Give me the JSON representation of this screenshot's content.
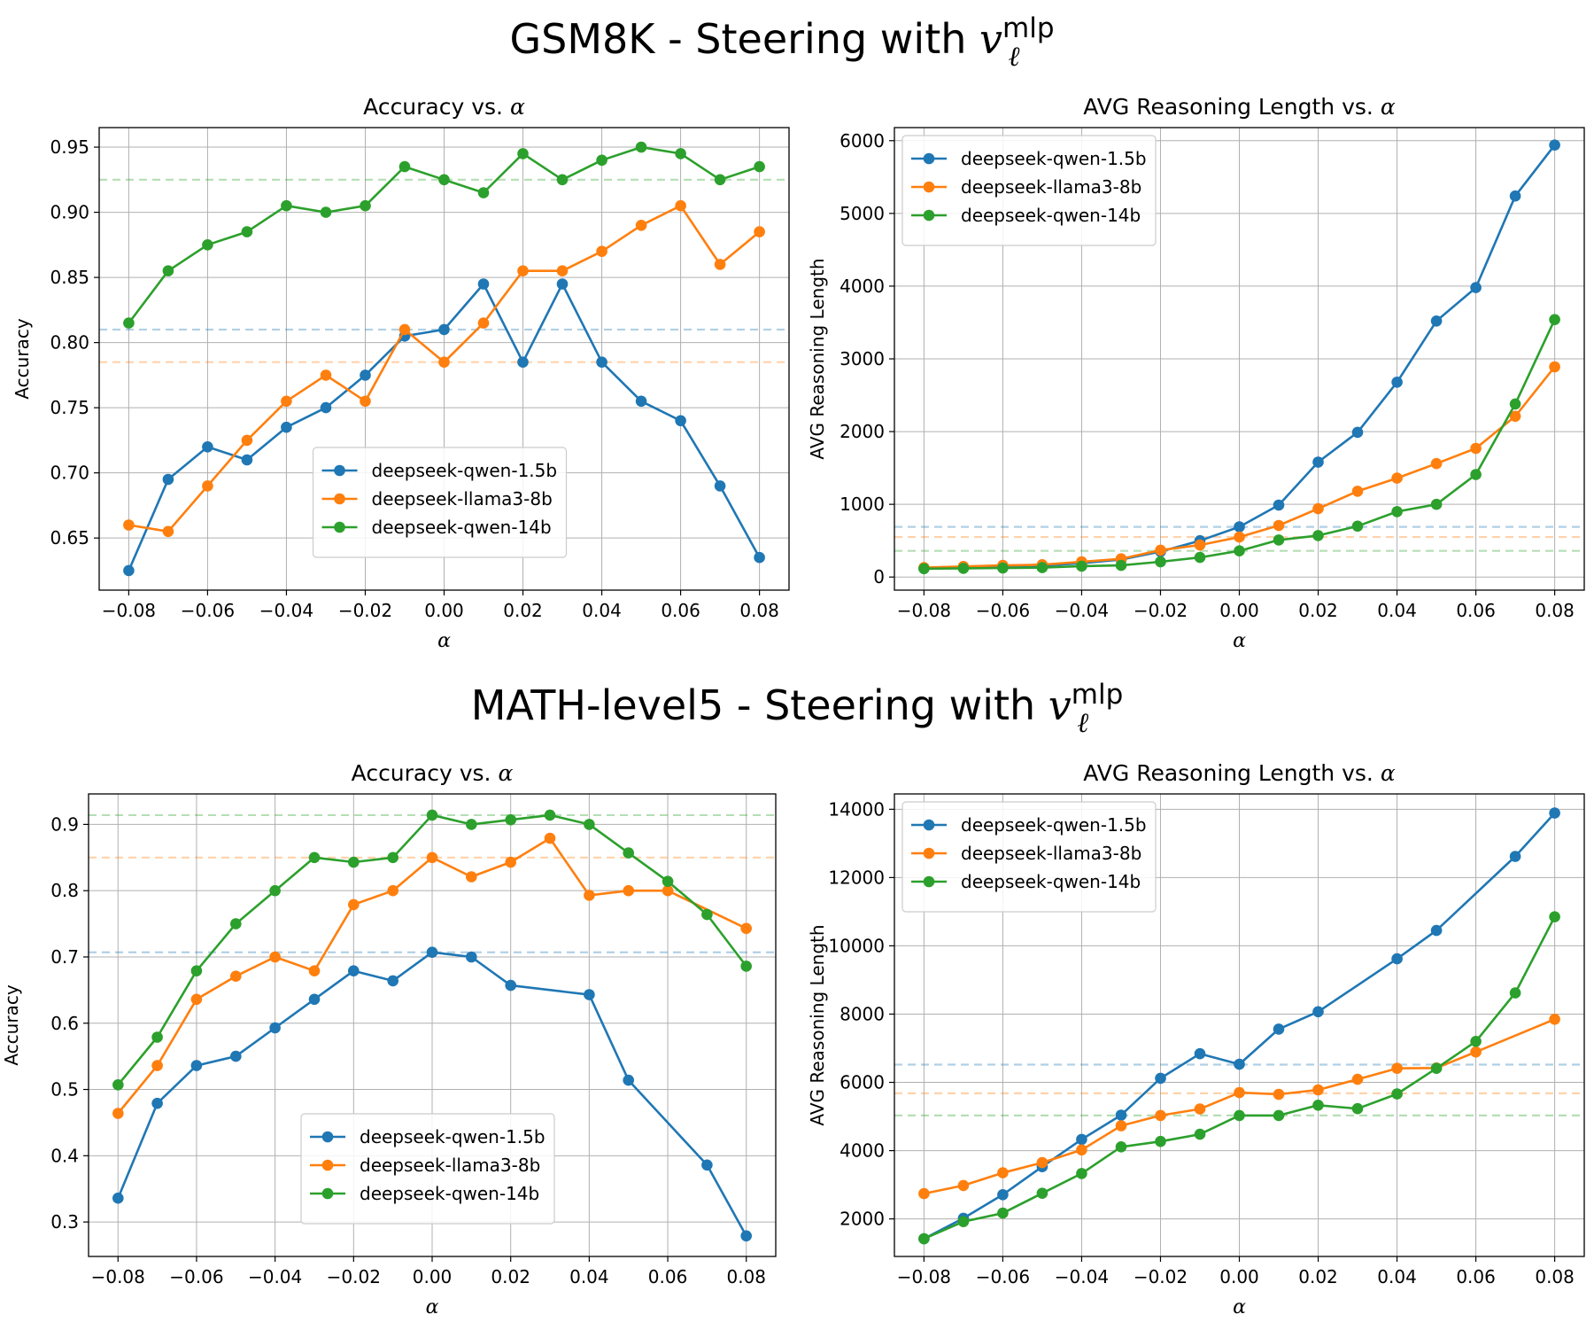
{
  "figure": {
    "suptitles": [
      {
        "text": "GSM8K - Steering with ",
        "var": "v",
        "sup": "mlp",
        "sub": "ℓ"
      },
      {
        "text": "MATH-level5 - Steering with ",
        "var": "v",
        "sup": "mlp",
        "sub": "ℓ"
      }
    ]
  },
  "colors": {
    "qwen15": "#1f77b4",
    "llama8": "#ff7f0e",
    "qwen14": "#2ca02c"
  },
  "chart_data": [
    {
      "type": "line",
      "title": "Accuracy vs. ",
      "title_var": "α",
      "xlabel": "α",
      "ylabel": "Accuracy",
      "x": [
        -0.08,
        -0.07,
        -0.06,
        -0.05,
        -0.04,
        -0.03,
        -0.02,
        -0.01,
        0.0,
        0.01,
        0.02,
        0.03,
        0.04,
        0.05,
        0.06,
        0.07,
        0.08
      ],
      "xlim": [
        -0.0875,
        0.0875
      ],
      "ylim": [
        0.61,
        0.965
      ],
      "xticks": [
        -0.08,
        -0.06,
        -0.04,
        -0.02,
        0.0,
        0.02,
        0.04,
        0.06,
        0.08
      ],
      "xtick_labels": [
        "−0.08",
        "−0.06",
        "−0.04",
        "−0.02",
        "0.00",
        "0.02",
        "0.04",
        "0.06",
        "0.08"
      ],
      "yticks": [
        0.65,
        0.7,
        0.75,
        0.8,
        0.85,
        0.9,
        0.95
      ],
      "ytick_labels": [
        "0.65",
        "0.70",
        "0.75",
        "0.80",
        "0.85",
        "0.90",
        "0.95"
      ],
      "legend_position": "lower-center",
      "grid": true,
      "series": [
        {
          "name": "deepseek-qwen-1.5b",
          "color": "#1f77b4",
          "baseline": 0.81,
          "values": [
            0.625,
            0.695,
            0.72,
            0.71,
            0.735,
            0.75,
            0.775,
            0.805,
            0.81,
            0.845,
            0.785,
            0.845,
            0.785,
            0.755,
            0.74,
            0.69,
            0.635
          ]
        },
        {
          "name": "deepseek-llama3-8b",
          "color": "#ff7f0e",
          "baseline": 0.785,
          "values": [
            0.66,
            0.655,
            0.69,
            0.725,
            0.755,
            0.775,
            0.755,
            0.81,
            0.785,
            0.815,
            0.855,
            0.855,
            0.87,
            0.89,
            0.905,
            0.86,
            0.885
          ]
        },
        {
          "name": "deepseek-qwen-14b",
          "color": "#2ca02c",
          "baseline": 0.925,
          "values": [
            0.815,
            0.855,
            0.875,
            0.885,
            0.905,
            0.9,
            0.905,
            0.935,
            0.925,
            0.915,
            0.945,
            0.925,
            0.94,
            0.95,
            0.945,
            0.925,
            0.935
          ]
        }
      ]
    },
    {
      "type": "line",
      "title": "AVG Reasoning Length vs. ",
      "title_var": "α",
      "xlabel": "α",
      "ylabel": "AVG Reasoning Length",
      "x": [
        -0.08,
        -0.07,
        -0.06,
        -0.05,
        -0.04,
        -0.03,
        -0.02,
        -0.01,
        0.0,
        0.01,
        0.02,
        0.03,
        0.04,
        0.05,
        0.06,
        0.07,
        0.08
      ],
      "xlim": [
        -0.0875,
        0.0875
      ],
      "ylim": [
        -180,
        6180
      ],
      "xticks": [
        -0.08,
        -0.06,
        -0.04,
        -0.02,
        0.0,
        0.02,
        0.04,
        0.06,
        0.08
      ],
      "xtick_labels": [
        "−0.08",
        "−0.06",
        "−0.04",
        "−0.02",
        "0.00",
        "0.02",
        "0.04",
        "0.06",
        "0.08"
      ],
      "yticks": [
        0,
        1000,
        2000,
        3000,
        4000,
        5000,
        6000
      ],
      "ytick_labels": [
        "0",
        "1000",
        "2000",
        "3000",
        "4000",
        "5000",
        "6000"
      ],
      "legend_position": "upper-left",
      "grid": true,
      "series": [
        {
          "name": "deepseek-qwen-1.5b",
          "color": "#1f77b4",
          "baseline": 690,
          "values": [
            120,
            130,
            140,
            155,
            190,
            240,
            350,
            500,
            690,
            990,
            1580,
            1990,
            2680,
            3520,
            3980,
            5240,
            5940
          ]
        },
        {
          "name": "deepseek-llama3-8b",
          "color": "#ff7f0e",
          "baseline": 550,
          "values": [
            130,
            145,
            160,
            170,
            210,
            250,
            370,
            440,
            550,
            710,
            940,
            1180,
            1360,
            1560,
            1770,
            2210,
            2890
          ]
        },
        {
          "name": "deepseek-qwen-14b",
          "color": "#2ca02c",
          "baseline": 360,
          "values": [
            115,
            120,
            125,
            130,
            150,
            160,
            210,
            270,
            360,
            510,
            570,
            700,
            900,
            1000,
            1410,
            2380,
            3540
          ]
        }
      ]
    },
    {
      "type": "line",
      "title": "Accuracy vs. ",
      "title_var": "α",
      "xlabel": "α",
      "ylabel": "Accuracy",
      "x": [
        -0.08,
        -0.07,
        -0.06,
        -0.05,
        -0.04,
        -0.03,
        -0.02,
        -0.01,
        0.0,
        0.01,
        0.02,
        0.03,
        0.04,
        0.05,
        0.06,
        0.07,
        0.08
      ],
      "xlim": [
        -0.0875,
        0.0875
      ],
      "ylim": [
        0.248,
        0.946
      ],
      "xticks": [
        -0.08,
        -0.06,
        -0.04,
        -0.02,
        0.0,
        0.02,
        0.04,
        0.06,
        0.08
      ],
      "xtick_labels": [
        "−0.08",
        "−0.06",
        "−0.04",
        "−0.02",
        "0.00",
        "0.02",
        "0.04",
        "0.06",
        "0.08"
      ],
      "yticks": [
        0.3,
        0.4,
        0.5,
        0.6,
        0.7,
        0.8,
        0.9
      ],
      "ytick_labels": [
        "0.3",
        "0.4",
        "0.5",
        "0.6",
        "0.7",
        "0.8",
        "0.9"
      ],
      "legend_position": "lower-center",
      "grid": true,
      "series": [
        {
          "name": "deepseek-qwen-1.5b",
          "color": "#1f77b4",
          "baseline": 0.707,
          "values": [
            0.336,
            0.479,
            0.536,
            0.55,
            0.593,
            0.636,
            0.679,
            0.664,
            0.707,
            0.7,
            0.657,
            null,
            0.643,
            0.514,
            null,
            0.386,
            0.279
          ]
        },
        {
          "name": "deepseek-llama3-8b",
          "color": "#ff7f0e",
          "baseline": 0.85,
          "values": [
            0.464,
            0.536,
            0.636,
            0.671,
            0.7,
            0.679,
            0.779,
            0.8,
            0.85,
            0.821,
            0.843,
            0.879,
            0.793,
            0.8,
            0.8,
            null,
            0.743
          ]
        },
        {
          "name": "deepseek-qwen-14b",
          "color": "#2ca02c",
          "baseline": 0.914,
          "values": [
            0.507,
            0.579,
            0.679,
            0.75,
            0.8,
            0.85,
            0.843,
            0.85,
            0.914,
            0.9,
            0.907,
            0.914,
            0.9,
            0.857,
            0.814,
            0.764,
            0.686
          ]
        }
      ]
    },
    {
      "type": "line",
      "title": "AVG Reasoning Length vs. ",
      "title_var": "α",
      "xlabel": "α",
      "ylabel": "AVG Reasoning Length",
      "x": [
        -0.08,
        -0.07,
        -0.06,
        -0.05,
        -0.04,
        -0.03,
        -0.02,
        -0.01,
        0.0,
        0.01,
        0.02,
        0.03,
        0.04,
        0.05,
        0.06,
        0.07,
        0.08
      ],
      "xlim": [
        -0.0875,
        0.0875
      ],
      "ylim": [
        900,
        14450
      ],
      "xticks": [
        -0.08,
        -0.06,
        -0.04,
        -0.02,
        0.0,
        0.02,
        0.04,
        0.06,
        0.08
      ],
      "xtick_labels": [
        "−0.08",
        "−0.06",
        "−0.04",
        "−0.02",
        "0.00",
        "0.02",
        "0.04",
        "0.06",
        "0.08"
      ],
      "yticks": [
        2000,
        4000,
        6000,
        8000,
        10000,
        12000,
        14000
      ],
      "ytick_labels": [
        "2000",
        "4000",
        "6000",
        "8000",
        "10000",
        "12000",
        "14000"
      ],
      "legend_position": "upper-left",
      "grid": true,
      "series": [
        {
          "name": "deepseek-qwen-1.5b",
          "color": "#1f77b4",
          "baseline": 6520,
          "values": [
            1420,
            2020,
            2710,
            3530,
            4330,
            5040,
            6120,
            6840,
            6530,
            7560,
            8070,
            null,
            9620,
            10450,
            null,
            12620,
            13890
          ]
        },
        {
          "name": "deepseek-llama3-8b",
          "color": "#ff7f0e",
          "baseline": 5680,
          "values": [
            2740,
            2980,
            3350,
            3650,
            4020,
            4730,
            5030,
            5220,
            5700,
            5650,
            5780,
            6090,
            6410,
            6420,
            6890,
            null,
            7850
          ]
        },
        {
          "name": "deepseek-qwen-14b",
          "color": "#2ca02c",
          "baseline": 5030,
          "values": [
            1420,
            1920,
            2170,
            2750,
            3330,
            4110,
            4270,
            4480,
            5030,
            5030,
            5330,
            5230,
            5660,
            6410,
            7200,
            8620,
            10850
          ]
        }
      ]
    }
  ]
}
